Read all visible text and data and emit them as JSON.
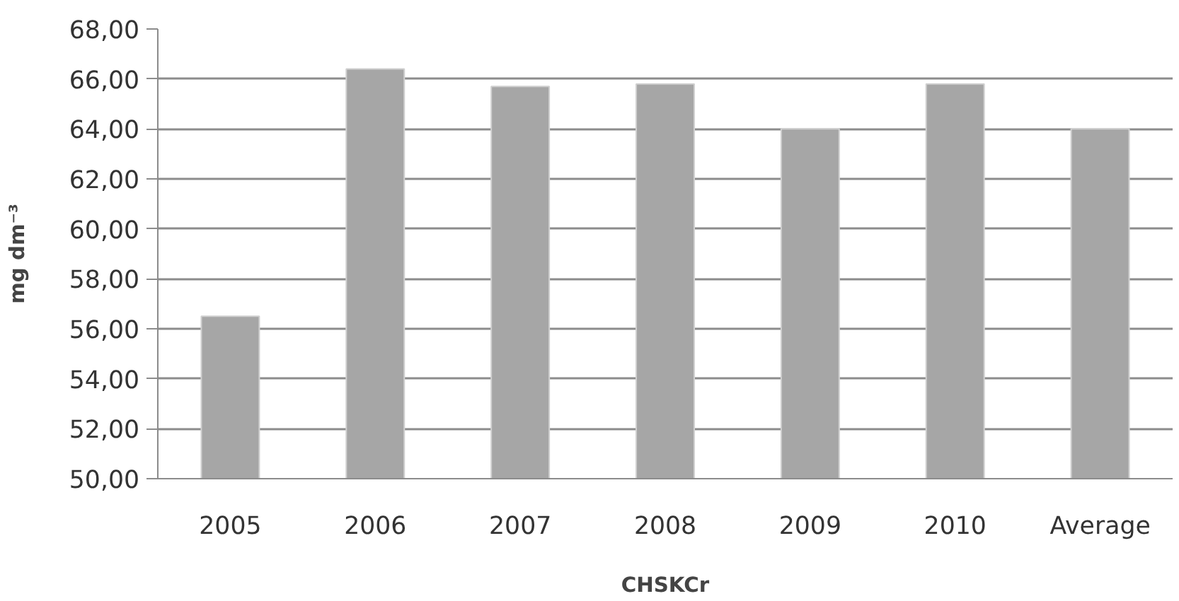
{
  "chart_data": {
    "type": "bar",
    "xlabel": "CHSKCr",
    "ylabel": "mg dm⁻³",
    "categories": [
      "2005",
      "2006",
      "2007",
      "2008",
      "2009",
      "2010",
      "Average"
    ],
    "values": [
      56.5,
      66.4,
      65.7,
      65.8,
      64.0,
      65.8,
      64.0
    ],
    "color": "#a6a6a6",
    "ylim": [
      50,
      68
    ],
    "yticks": [
      {
        "value": 50,
        "label": "50,00"
      },
      {
        "value": 52,
        "label": "52,00"
      },
      {
        "value": 54,
        "label": "54,00"
      },
      {
        "value": 56,
        "label": "56,00"
      },
      {
        "value": 58,
        "label": "58,00"
      },
      {
        "value": 60,
        "label": "60,00"
      },
      {
        "value": 62,
        "label": "62,00"
      },
      {
        "value": 64,
        "label": "64,00"
      },
      {
        "value": 66,
        "label": "66,00"
      },
      {
        "value": 68,
        "label": "68,00"
      }
    ],
    "grid": "y"
  }
}
